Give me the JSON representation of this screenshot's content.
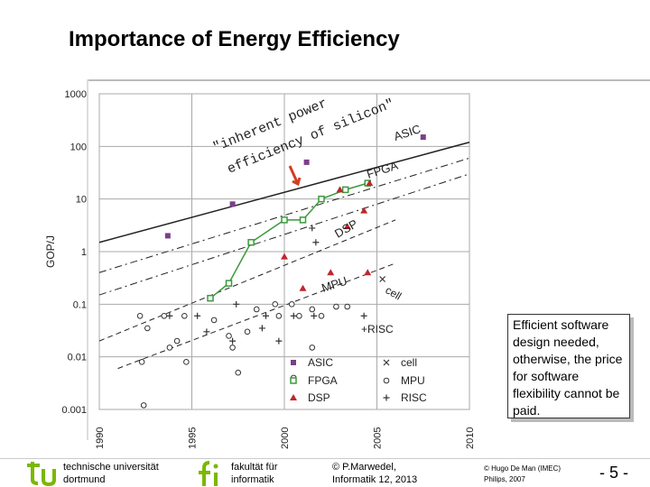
{
  "slide": {
    "title": "Importance of Energy Efficiency",
    "callout": "Efficient software design needed, otherwise, the price for software flexibility cannot be paid."
  },
  "chart_data": {
    "type": "scatter",
    "title": "",
    "xlabel": "",
    "ylabel": "GOP/J",
    "yscale": "log",
    "xlim": [
      1990,
      2010
    ],
    "ylim": [
      0.001,
      1000
    ],
    "x_ticks": [
      "1990",
      "1995",
      "2000",
      "2005",
      "2010"
    ],
    "y_ticks": [
      "1000",
      "100",
      "10",
      "1",
      "0.1",
      "0.01",
      "0.001"
    ],
    "annotation_lines": [
      "\"inherent power",
      "efficiency of silicon\""
    ],
    "curve_labels": [
      "ASIC",
      "FPGA",
      "DSP",
      "MPU",
      "+RISC",
      "cell"
    ],
    "legend": [
      "ASIC",
      "FPGA",
      "DSP",
      "cell",
      "MPU",
      "RISC"
    ],
    "series": [
      {
        "name": "ASIC",
        "marker": "square",
        "color": "#7a3f8a",
        "points": [
          [
            1993.7,
            2
          ],
          [
            1997.2,
            8
          ],
          [
            2001.2,
            50
          ],
          [
            2007.5,
            150
          ]
        ]
      },
      {
        "name": "FPGA",
        "marker": "open-square",
        "color": "#3a9a3a",
        "points": [
          [
            1996,
            0.13
          ],
          [
            1997,
            0.25
          ],
          [
            1998.2,
            1.5
          ],
          [
            2000,
            4
          ],
          [
            2001,
            4
          ],
          [
            2002,
            10
          ],
          [
            2003.3,
            15
          ],
          [
            2004.5,
            20
          ]
        ]
      },
      {
        "name": "DSP",
        "marker": "triangle",
        "color": "#c0262d",
        "points": [
          [
            2000,
            0.8
          ],
          [
            2001,
            0.2
          ],
          [
            2002.5,
            0.4
          ],
          [
            2003,
            15
          ],
          [
            2003.4,
            3
          ],
          [
            2004.6,
            20
          ],
          [
            2004.3,
            6
          ],
          [
            2004.5,
            0.4
          ]
        ]
      },
      {
        "name": "cell",
        "marker": "x",
        "color": "#333333",
        "points": [
          [
            2005.3,
            0.3
          ]
        ]
      },
      {
        "name": "MPU",
        "marker": "circle",
        "color": "#333333",
        "points": [
          [
            1992.2,
            0.06
          ],
          [
            1993.5,
            0.06
          ],
          [
            1994.6,
            0.06
          ],
          [
            1992.6,
            0.035
          ],
          [
            1993.8,
            0.015
          ],
          [
            1994.2,
            0.02
          ],
          [
            1992.3,
            0.008
          ],
          [
            1994.7,
            0.008
          ],
          [
            1996.2,
            0.05
          ],
          [
            1997,
            0.025
          ],
          [
            1997.2,
            0.015
          ],
          [
            1998,
            0.03
          ],
          [
            1998.5,
            0.08
          ],
          [
            1999.5,
            0.1
          ],
          [
            1999.7,
            0.06
          ],
          [
            2000.4,
            0.1
          ],
          [
            2000.8,
            0.06
          ],
          [
            2001.5,
            0.08
          ],
          [
            2002,
            0.06
          ],
          [
            2001.5,
            0.015
          ],
          [
            2002.8,
            0.09
          ],
          [
            2003.4,
            0.09
          ],
          [
            2000.5,
            0.004
          ],
          [
            1992.4,
            0.0012
          ],
          [
            1997.5,
            0.005
          ]
        ]
      },
      {
        "name": "RISC",
        "marker": "plus",
        "color": "#333333",
        "points": [
          [
            1993.8,
            0.06
          ],
          [
            1995.3,
            0.06
          ],
          [
            1995.8,
            0.03
          ],
          [
            1997.2,
            0.02
          ],
          [
            1997.4,
            0.1
          ],
          [
            1998.8,
            0.035
          ],
          [
            1999,
            0.06
          ],
          [
            1999.7,
            0.02
          ],
          [
            2000.5,
            0.06
          ],
          [
            2001.6,
            0.06
          ],
          [
            2001.5,
            2.8
          ],
          [
            2001.7,
            1.5
          ],
          [
            2004.3,
            0.06
          ]
        ]
      }
    ]
  },
  "footer": {
    "uni_line1": "technische universität",
    "uni_line2": "dortmund",
    "fak_line1": "fakultät für",
    "fak_line2": "informatik",
    "author_line1": "© P.Marwedel,",
    "author_line2": "Informatik 12, 2013",
    "credit_line1": "© Hugo De Man (IMEC)",
    "credit_line2": "Philips, 2007",
    "page": "- 5 -"
  }
}
